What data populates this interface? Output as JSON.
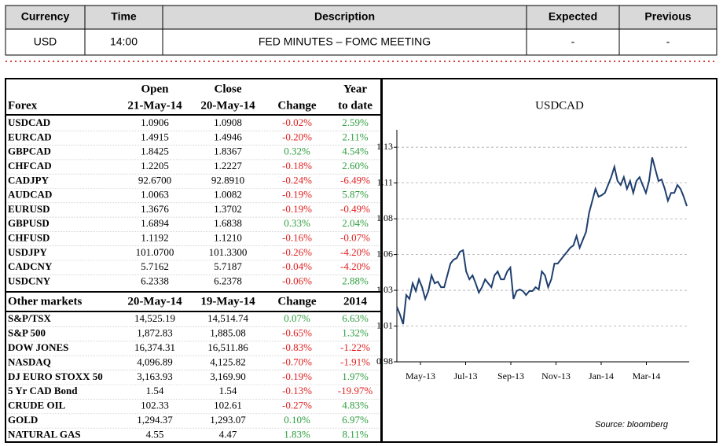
{
  "top_table": {
    "headers": [
      "Currency",
      "Time",
      "Description",
      "Expected",
      "Previous"
    ],
    "rows": [
      [
        "USD",
        "14:00",
        "FED MINUTES – FOMC MEETING",
        "-",
        "-"
      ]
    ]
  },
  "forex": {
    "headers": [
      [
        "Forex"
      ],
      [
        "Open",
        "21-May-14"
      ],
      [
        "Close",
        "20-May-14"
      ],
      [
        "Change"
      ],
      [
        "Year",
        "to date"
      ]
    ],
    "rows": [
      [
        "USDCAD",
        "1.0906",
        "1.0908",
        "-0.02%",
        "2.59%"
      ],
      [
        "EURCAD",
        "1.4915",
        "1.4946",
        "-0.20%",
        "2.11%"
      ],
      [
        "GBPCAD",
        "1.8425",
        "1.8367",
        "0.32%",
        "4.54%"
      ],
      [
        "CHFCAD",
        "1.2205",
        "1.2227",
        "-0.18%",
        "2.60%"
      ],
      [
        "CADJPY",
        "92.6700",
        "92.8910",
        "-0.24%",
        "-6.49%"
      ],
      [
        "AUDCAD",
        "1.0063",
        "1.0082",
        "-0.19%",
        "5.87%"
      ],
      [
        "EURUSD",
        "1.3676",
        "1.3702",
        "-0.19%",
        "-0.49%"
      ],
      [
        "GBPUSD",
        "1.6894",
        "1.6838",
        "0.33%",
        "2.04%"
      ],
      [
        "CHFUSD",
        "1.1192",
        "1.1210",
        "-0.16%",
        "-0.07%"
      ],
      [
        "USDJPY",
        "101.0700",
        "101.3300",
        "-0.26%",
        "-4.20%"
      ],
      [
        "CADCNY",
        "5.7162",
        "5.7187",
        "-0.04%",
        "-4.20%"
      ],
      [
        "USDCNY",
        "6.2338",
        "6.2378",
        "-0.06%",
        "2.88%"
      ]
    ]
  },
  "other_markets": {
    "headers": [
      "Other markets",
      "20-May-14",
      "19-May-14",
      "Change",
      "2014"
    ],
    "rows": [
      [
        "S&P/TSX",
        "14,525.19",
        "14,514.74",
        "0.07%",
        "6.63%"
      ],
      [
        "S&P 500",
        "1,872.83",
        "1,885.08",
        "-0.65%",
        "1.32%"
      ],
      [
        "DOW JONES",
        "16,374.31",
        "16,511.86",
        "-0.83%",
        "-1.22%"
      ],
      [
        "NASDAQ",
        "4,096.89",
        "4,125.82",
        "-0.70%",
        "-1.91%"
      ],
      [
        "DJ EURO STOXX 50",
        "3,163.93",
        "3,169.90",
        "-0.19%",
        "1.97%"
      ],
      [
        "5 Yr CAD Bond",
        "1.54",
        "1.54",
        "-0.13%",
        "-19.97%"
      ],
      [
        "CRUDE OIL",
        "102.33",
        "102.61",
        "-0.27%",
        "4.83%"
      ],
      [
        "GOLD",
        "1,294.37",
        "1,293.07",
        "0.10%",
        "6.97%"
      ],
      [
        "NATURAL GAS",
        "4.55",
        "4.47",
        "1.83%",
        "8.11%"
      ]
    ]
  },
  "chart_data": {
    "type": "line",
    "title": "USDCAD",
    "source": "Source: bloomberg",
    "color": "#1f3f6e",
    "grid": true,
    "x_labels": [
      "May-13",
      "Jul-13",
      "Sep-13",
      "Nov-13",
      "Jan-14",
      "Mar-14"
    ],
    "values": [
      1.0185,
      1.013,
      1.0064,
      1.0267,
      1.024,
      1.0349,
      1.0295,
      1.0377,
      1.0322,
      1.024,
      1.0295,
      1.0404,
      1.0349,
      1.036,
      1.0322,
      1.0322,
      1.0404,
      1.0487,
      1.0514,
      1.0525,
      1.0569,
      1.058,
      1.0432,
      1.0377,
      1.0404,
      1.0349,
      1.0284,
      1.0322,
      1.0377,
      1.0349,
      1.0322,
      1.0404,
      1.0432,
      1.0377,
      1.0377,
      1.0432,
      1.0459,
      1.024,
      1.0295,
      1.0306,
      1.0295,
      1.0267,
      1.0295,
      1.0295,
      1.0322,
      1.0306,
      1.0432,
      1.0404,
      1.0322,
      1.0377,
      1.0487,
      1.0487,
      1.0514,
      1.0542,
      1.0569,
      1.0597,
      1.0613,
      1.0679,
      1.0597,
      1.0652,
      1.0707,
      1.0844,
      1.0926,
      1.1009,
      1.0954,
      1.0965,
      1.0981,
      1.1036,
      1.1091,
      1.1163,
      1.1064,
      1.1036,
      1.1091,
      1.1009,
      1.1064,
      1.0981,
      1.1064,
      1.1091,
      1.1036,
      1.0981,
      1.1064,
      1.1229,
      1.1146,
      1.1064,
      1.1075,
      1.1009,
      1.0926,
      1.0981,
      1.0981,
      1.1036,
      1.1009,
      1.0954,
      1.0888
    ],
    "ylim": [
      0.98,
      1.14
    ],
    "yticks": [
      0.98,
      {
        "value": 1.005,
        "label": "1.01"
      },
      1.03,
      {
        "value": 1.055,
        "label": "1.06"
      },
      1.08,
      {
        "value": 1.105,
        "label": "1.11"
      },
      1.13
    ]
  }
}
